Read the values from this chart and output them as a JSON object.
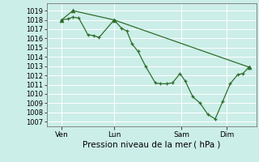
{
  "bg_color": "#cceee8",
  "grid_color": "#ffffff",
  "line_color": "#2d6e2d",
  "marker_color": "#2d6e2d",
  "ylim": [
    1006.5,
    1019.8
  ],
  "yticks": [
    1007,
    1008,
    1009,
    1010,
    1011,
    1012,
    1013,
    1014,
    1015,
    1016,
    1017,
    1018,
    1019
  ],
  "xlim": [
    0,
    28
  ],
  "day_labels": [
    "Ven",
    "Lun",
    "Sam",
    "Dim"
  ],
  "vline_positions": [
    2,
    9,
    18,
    24
  ],
  "xlabel": "Pression niveau de la mer ( hPa )",
  "series_detail": [
    [
      2,
      1018.0
    ],
    [
      2.8,
      1018.1
    ],
    [
      3.5,
      1018.3
    ],
    [
      4.3,
      1018.2
    ],
    [
      5.5,
      1016.4
    ],
    [
      6.3,
      1016.3
    ],
    [
      7.0,
      1016.1
    ],
    [
      9.0,
      1018.0
    ],
    [
      10.0,
      1017.1
    ],
    [
      10.7,
      1016.8
    ],
    [
      11.4,
      1015.4
    ],
    [
      12.2,
      1014.6
    ],
    [
      13.2,
      1013.0
    ],
    [
      14.5,
      1011.2
    ],
    [
      15.2,
      1011.1
    ],
    [
      16.0,
      1011.1
    ],
    [
      16.8,
      1011.2
    ],
    [
      17.8,
      1012.2
    ],
    [
      18.5,
      1011.4
    ],
    [
      19.5,
      1009.7
    ],
    [
      20.5,
      1009.0
    ],
    [
      21.5,
      1007.8
    ],
    [
      22.5,
      1007.3
    ],
    [
      23.5,
      1009.2
    ],
    [
      24.5,
      1011.1
    ],
    [
      25.5,
      1012.1
    ],
    [
      26.2,
      1012.2
    ],
    [
      27.0,
      1012.9
    ]
  ],
  "series_envelope": [
    [
      2,
      1018.0
    ],
    [
      3.5,
      1019.0
    ],
    [
      9.0,
      1018.0
    ],
    [
      27.0,
      1012.9
    ]
  ]
}
